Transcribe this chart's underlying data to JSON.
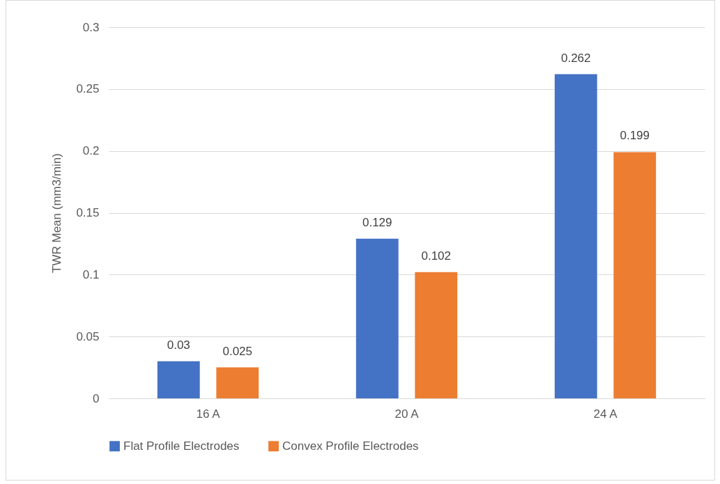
{
  "chart_data": {
    "type": "bar",
    "ylabel": "TWR Mean (mm3/min)",
    "categories": [
      "16 A",
      "20 A",
      "24 A"
    ],
    "series": [
      {
        "name": "Flat Profile Electrodes",
        "color": "#4472c4",
        "values": [
          0.03,
          0.129,
          0.262
        ]
      },
      {
        "name": "Convex Profile Electrodes",
        "color": "#ed7d31",
        "values": [
          0.025,
          0.102,
          0.199
        ]
      }
    ],
    "ylim": [
      0,
      0.3
    ],
    "yticks": [
      0,
      0.05,
      0.1,
      0.15,
      0.2,
      0.25,
      0.3
    ],
    "grid": "y",
    "legend": "bottom",
    "data_labels": true
  }
}
